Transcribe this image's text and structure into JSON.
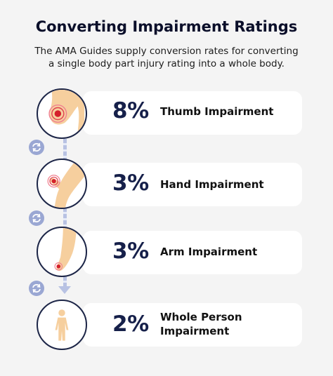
{
  "header": {
    "title": "Converting Impairment Ratings",
    "subtitle_line1": "The AMA Guides supply conversion rates for converting",
    "subtitle_line2": "a single body part injury rating into a whole body."
  },
  "steps": [
    {
      "percent": "8%",
      "label_line1": "Thumb Impairment",
      "label_line2": ""
    },
    {
      "percent": "3%",
      "label_line1": "Hand Impairment",
      "label_line2": ""
    },
    {
      "percent": "3%",
      "label_line1": "Arm Impairment",
      "label_line2": ""
    },
    {
      "percent": "2%",
      "label_line1": "Whole Person",
      "label_line2": "Impairment"
    }
  ],
  "colors": {
    "background": "#f4f4f4",
    "card": "#ffffff",
    "navy": "#16204a",
    "skin": "#f6cf9e",
    "injury": "#d4202c",
    "connector": "#b8c2e3",
    "sync_badge": "#9aa7d3"
  },
  "icons": [
    "thumb-icon",
    "hand-icon",
    "arm-icon",
    "whole-person-icon",
    "sync-icon"
  ]
}
